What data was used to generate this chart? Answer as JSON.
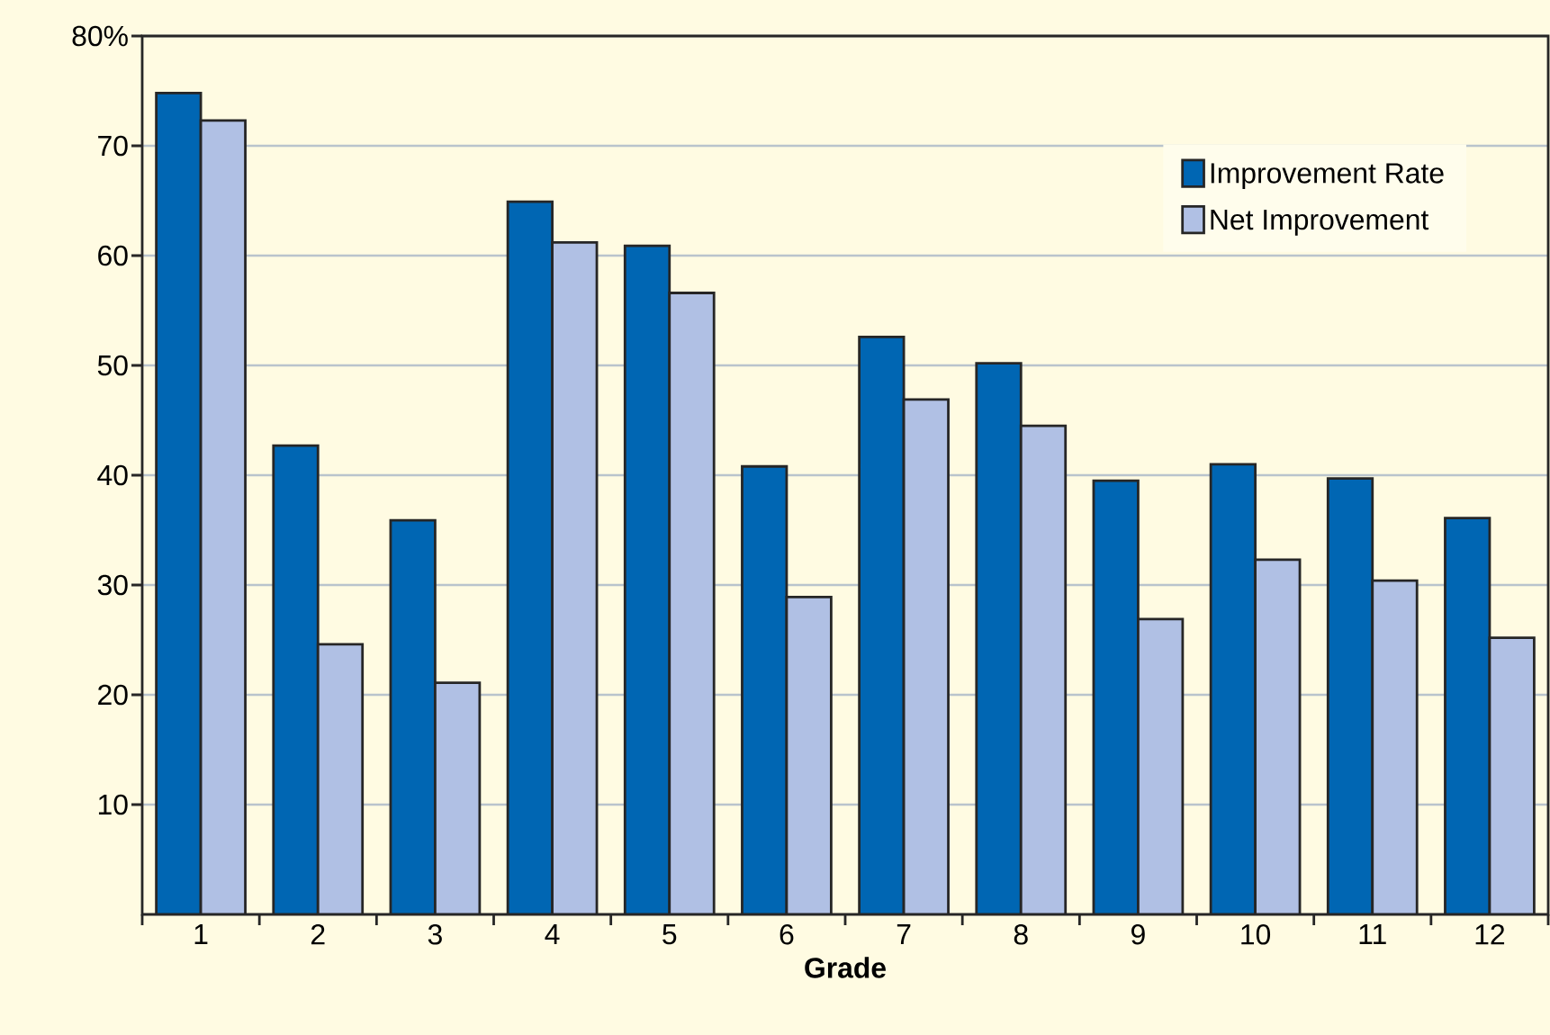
{
  "chart_data": {
    "type": "bar",
    "xlabel": "Grade",
    "categories": [
      "1",
      "2",
      "3",
      "4",
      "5",
      "6",
      "7",
      "8",
      "9",
      "10",
      "11",
      "12"
    ],
    "series": [
      {
        "name": "Improvement Rate",
        "color": "#0066b3",
        "values": [
          74.8,
          42.7,
          35.9,
          64.9,
          60.9,
          40.8,
          52.6,
          50.2,
          39.5,
          41.0,
          39.7,
          36.1
        ]
      },
      {
        "name": "Net Improvement",
        "color": "#b0c0e4",
        "values": [
          72.3,
          24.6,
          21.1,
          61.2,
          56.6,
          28.9,
          46.9,
          44.5,
          26.9,
          32.3,
          30.4,
          25.2
        ]
      }
    ],
    "ylim": [
      0,
      80
    ],
    "yticks": [
      10,
      20,
      30,
      40,
      50,
      60,
      70,
      {
        "value": 80,
        "label": "80%"
      }
    ],
    "grid": "y",
    "legend": "top right"
  }
}
